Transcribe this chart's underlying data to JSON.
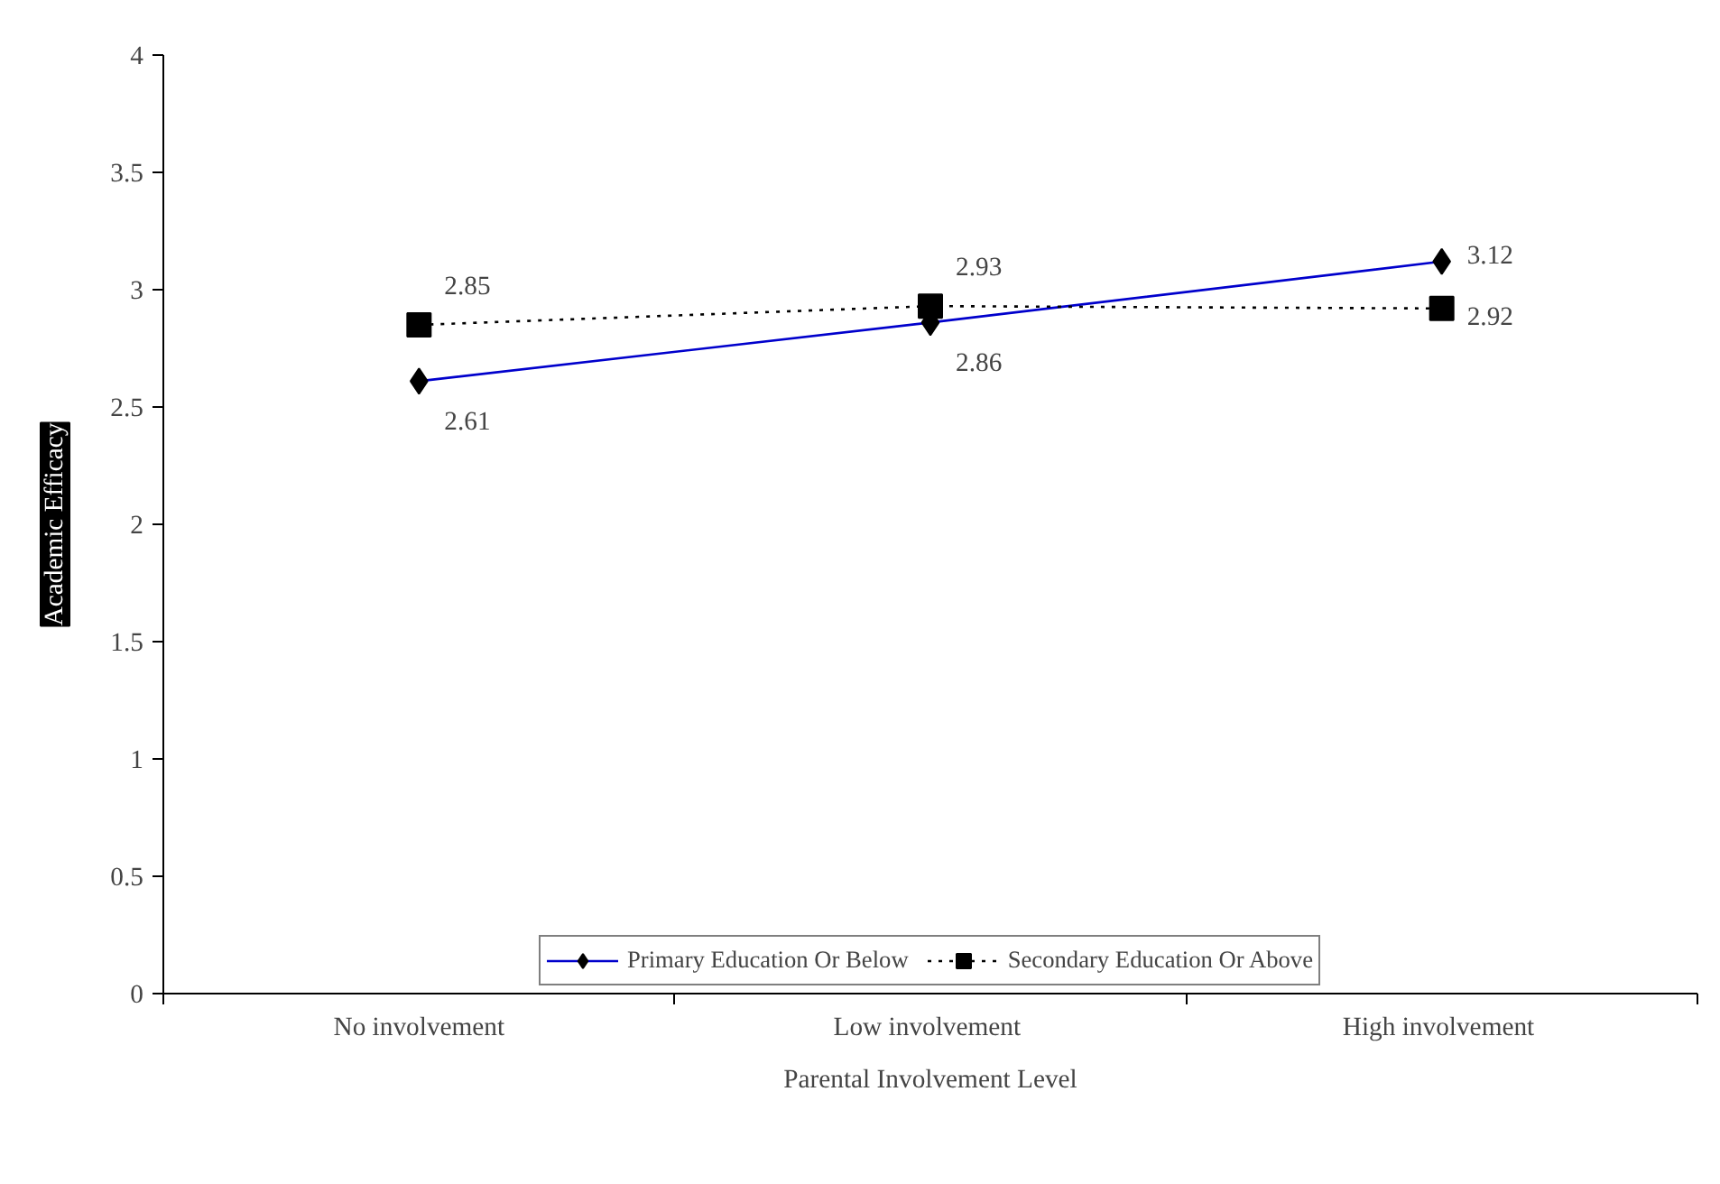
{
  "chart_data": {
    "type": "line",
    "xlabel": "Parental Involvement Level",
    "ylabel": "Academic Efficacy",
    "categories": [
      "No involvement",
      "Low  involvement",
      "High  involvement"
    ],
    "series": [
      {
        "name": "Primary Education Or Below",
        "color": "#0000cc",
        "values": [
          2.61,
          2.86,
          3.12
        ],
        "marker": "diamond",
        "line_style": "solid"
      },
      {
        "name": "Secondary Education Or Above",
        "color": "#000000",
        "values": [
          2.85,
          2.93,
          2.92
        ],
        "marker": "square",
        "line_style": "dotted"
      }
    ],
    "ylim": [
      0,
      4
    ],
    "yticks": [
      0,
      0.5,
      1,
      1.5,
      2,
      2.5,
      3,
      3.5,
      4
    ],
    "data_labels": true,
    "grid": false,
    "legend": "bottom"
  }
}
